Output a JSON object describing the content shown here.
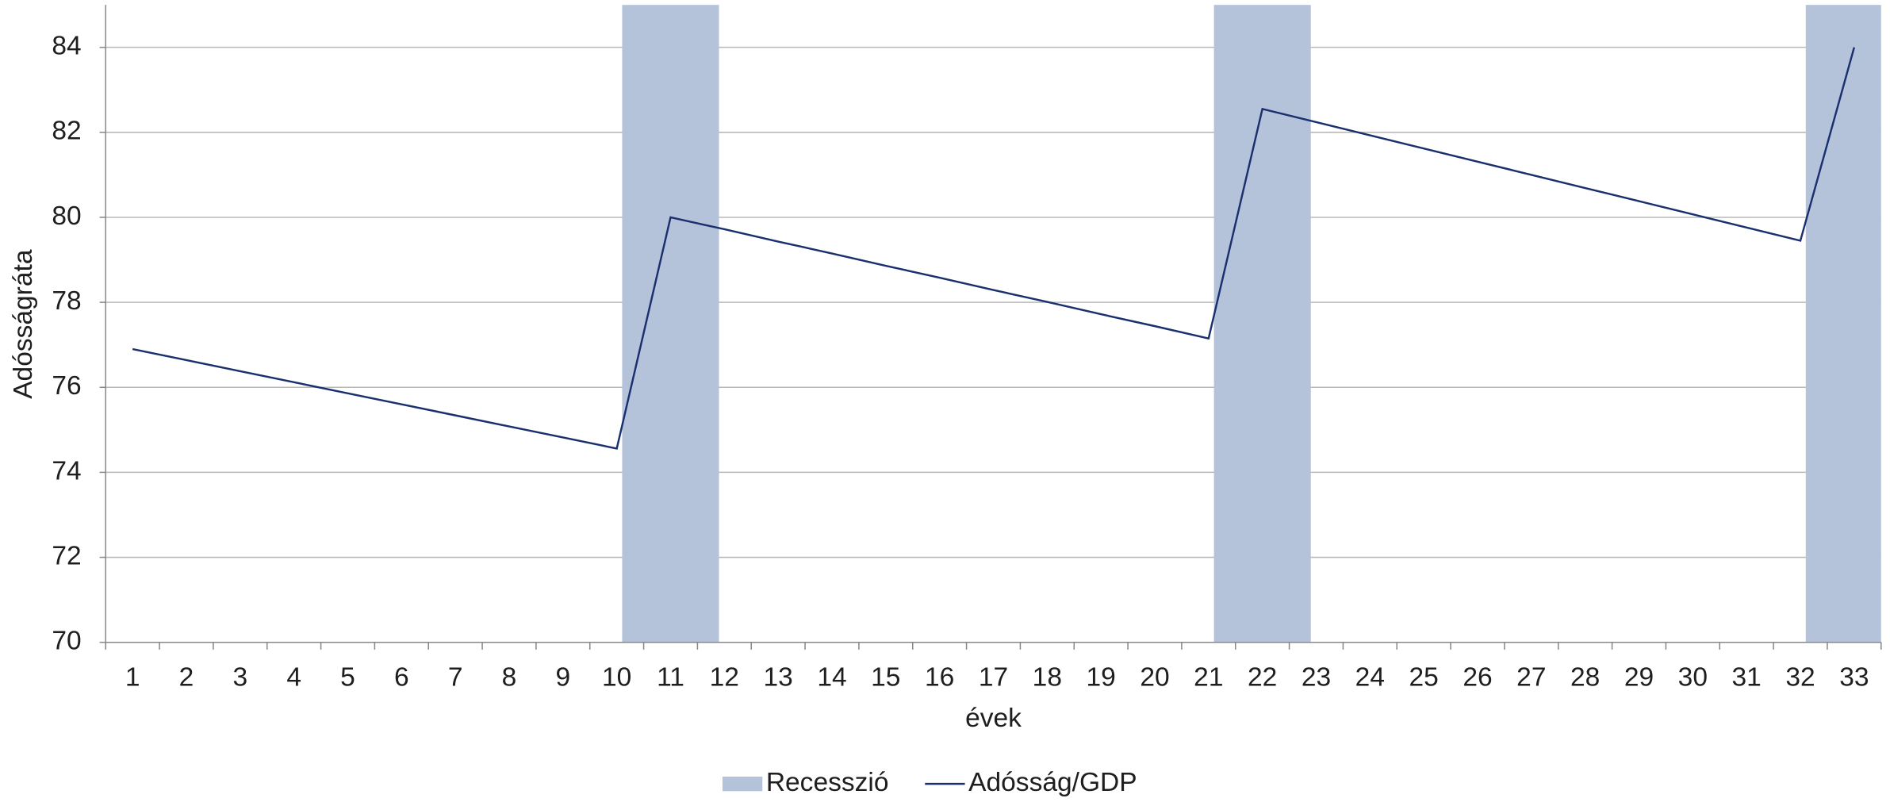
{
  "chart_data": {
    "type": "combo",
    "y_label": "Adósságráta",
    "x_label": "évek",
    "categories": [
      1,
      2,
      3,
      4,
      5,
      6,
      7,
      8,
      9,
      10,
      11,
      12,
      13,
      14,
      15,
      16,
      17,
      18,
      19,
      20,
      21,
      22,
      23,
      24,
      25,
      26,
      27,
      28,
      29,
      30,
      31,
      32,
      33
    ],
    "series": [
      {
        "name": "Recesszió",
        "type": "bar",
        "color": "#b4c2da",
        "values": [
          null,
          null,
          null,
          null,
          null,
          null,
          null,
          null,
          null,
          null,
          85,
          null,
          null,
          null,
          null,
          null,
          null,
          null,
          null,
          null,
          null,
          85,
          null,
          null,
          null,
          null,
          null,
          null,
          null,
          null,
          null,
          null,
          85
        ]
      },
      {
        "name": "Adósság/GDP",
        "type": "line",
        "color": "#1a2f6e",
        "values": [
          76.9,
          76.64,
          76.38,
          76.12,
          75.86,
          75.6,
          75.34,
          75.08,
          74.82,
          74.56,
          80.0,
          79.72,
          79.43,
          79.15,
          78.86,
          78.58,
          78.29,
          78.01,
          77.72,
          77.44,
          77.15,
          82.55,
          82.24,
          81.93,
          81.62,
          81.31,
          81.0,
          80.69,
          80.38,
          80.07,
          79.76,
          79.45,
          84.0
        ]
      }
    ],
    "ylim": [
      70,
      85
    ],
    "yticks": [
      70,
      72,
      74,
      76,
      78,
      80,
      82,
      84
    ],
    "grid": true,
    "legend": "bottom"
  }
}
